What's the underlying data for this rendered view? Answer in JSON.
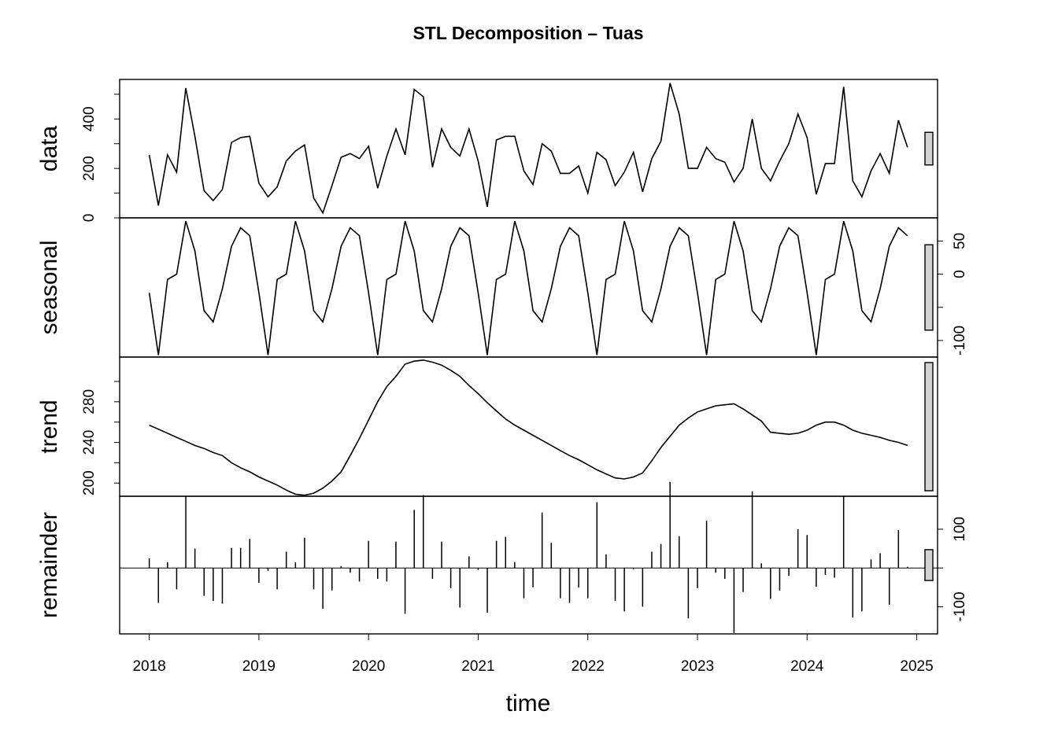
{
  "title": "STL Decomposition – Tuas",
  "xlabel": "time",
  "chart_data": {
    "type": "line",
    "title": "STL Decomposition – Tuas",
    "xlabel": "time",
    "x_start": "2018-01",
    "frequency": "monthly",
    "n_points": 84,
    "xlim": [
      2017.73,
      2025.19
    ],
    "x_ticks": [
      2018,
      2019,
      2020,
      2021,
      2022,
      2023,
      2024,
      2025
    ],
    "x_tick_labels": [
      "2018",
      "2019",
      "2020",
      "2021",
      "2022",
      "2023",
      "2024",
      "2025"
    ],
    "grid": false,
    "panels": [
      {
        "name": "data",
        "ylabel": "data",
        "ylim": [
          0,
          560
        ],
        "y_ticks": [
          0,
          200,
          400
        ],
        "y_tick_labels": [
          "0",
          "200",
          "400"
        ],
        "y_minor_ticks": [
          0,
          100,
          200,
          300,
          400,
          500
        ],
        "axis_side": "left",
        "style": "line",
        "values": [
          255,
          50,
          255,
          185,
          525,
          330,
          110,
          70,
          115,
          305,
          325,
          330,
          140,
          85,
          125,
          230,
          270,
          295,
          80,
          20,
          130,
          245,
          260,
          240,
          290,
          120,
          250,
          360,
          255,
          520,
          490,
          205,
          360,
          285,
          250,
          360,
          230,
          45,
          315,
          330,
          330,
          190,
          135,
          300,
          270,
          180,
          180,
          210,
          100,
          265,
          235,
          130,
          185,
          265,
          105,
          240,
          310,
          545,
          420,
          200,
          200,
          285,
          240,
          225,
          145,
          200,
          400,
          200,
          150,
          230,
          300,
          420,
          325,
          95,
          220,
          220,
          530,
          150,
          85,
          190,
          260,
          180,
          395,
          285
        ]
      },
      {
        "name": "seasonal",
        "ylabel": "seasonal",
        "ylim": [
          -125,
          85
        ],
        "y_ticks": [
          -100,
          0,
          50
        ],
        "y_tick_labels": [
          "-100",
          "0",
          "50"
        ],
        "y_minor_ticks": [
          -100,
          -50,
          0,
          50
        ],
        "axis_side": "right",
        "style": "line",
        "values": [
          -28,
          -122,
          -8,
          0,
          80,
          35,
          -55,
          -72,
          -22,
          42,
          70,
          58
        ]
      },
      {
        "name": "trend",
        "ylabel": "trend",
        "ylim": [
          187,
          324
        ],
        "y_ticks": [
          200,
          240,
          280
        ],
        "y_tick_labels": [
          "200",
          "240",
          "280"
        ],
        "y_minor_ticks": [
          200,
          220,
          240,
          260,
          280,
          300
        ],
        "axis_side": "left",
        "style": "line",
        "values": [
          257,
          253,
          249,
          245,
          241,
          237,
          234,
          230,
          227,
          220,
          215,
          211,
          206,
          202,
          198,
          193,
          189,
          188,
          190,
          195,
          202,
          211,
          227,
          244,
          262,
          280,
          295,
          305,
          317,
          320,
          321,
          319,
          316,
          311,
          305,
          296,
          288,
          279,
          271,
          263,
          257,
          252,
          247,
          242,
          237,
          232,
          227,
          223,
          218,
          213,
          209,
          205,
          204,
          206,
          210,
          222,
          235,
          246,
          257,
          264,
          270,
          273,
          276,
          277,
          278,
          273,
          267,
          261,
          250,
          249,
          248,
          249,
          252,
          257,
          260,
          260,
          257,
          252,
          249,
          247,
          245,
          242,
          240,
          237
        ]
      },
      {
        "name": "remainder",
        "ylabel": "remainder",
        "ylim": [
          -170,
          185
        ],
        "y_ticks": [
          -100,
          100
        ],
        "y_tick_labels": [
          "-100",
          "100"
        ],
        "y_minor_ticks": [
          -100,
          0,
          100
        ],
        "axis_side": "right",
        "style": "bars",
        "values": [
          25,
          -90,
          15,
          -55,
          185,
          50,
          -72,
          -85,
          -92,
          52,
          52,
          75,
          -38,
          -8,
          -55,
          42,
          15,
          78,
          -55,
          -105,
          -58,
          5,
          -12,
          -35,
          70,
          -28,
          -35,
          68,
          -118,
          150,
          188,
          -28,
          68,
          -52,
          -102,
          30,
          -5,
          -115,
          70,
          80,
          15,
          -78,
          -50,
          143,
          65,
          -78,
          -90,
          -50,
          -78,
          170,
          35,
          -85,
          -112,
          -3,
          -100,
          42,
          62,
          222,
          82,
          -130,
          -52,
          122,
          -12,
          -28,
          -168,
          -62,
          198,
          12,
          -80,
          -58,
          -20,
          100,
          85,
          -48,
          -18,
          -25,
          185,
          -128,
          -112,
          22,
          38,
          -95,
          98,
          3
        ]
      }
    ]
  }
}
